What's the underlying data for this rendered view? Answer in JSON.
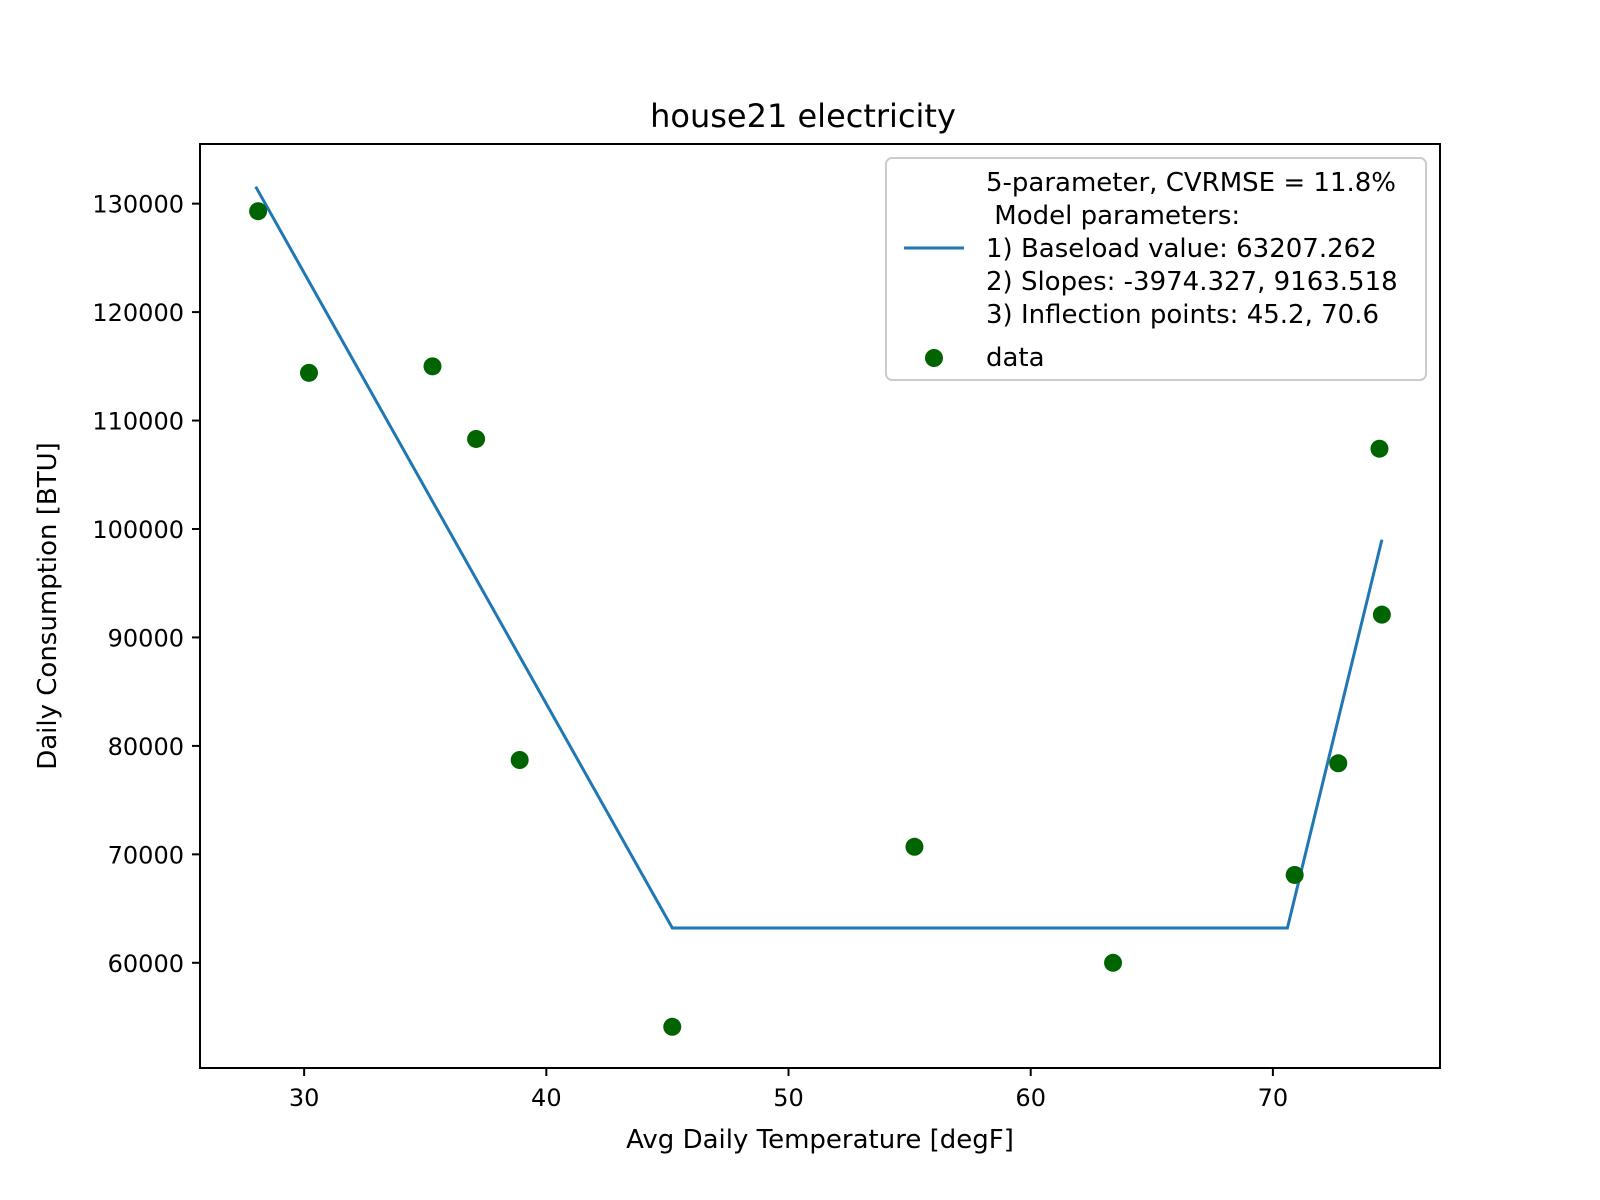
{
  "chart_data": {
    "type": "scatter",
    "title": "house21 electricity",
    "xlabel": "Avg Daily Temperature [degF]",
    "ylabel": "Daily Consumption [BTU]",
    "xlim": [
      25.7,
      76.9
    ],
    "ylim": [
      50300,
      135500
    ],
    "xticks": [
      30,
      40,
      50,
      60,
      70
    ],
    "yticks": [
      60000,
      70000,
      80000,
      90000,
      100000,
      110000,
      120000,
      130000
    ],
    "grid": false,
    "legend_position": "top-right",
    "series": [
      {
        "name": "model",
        "kind": "line",
        "color": "#1f77b4",
        "legend_lines": [
          "5-parameter, CVRMSE = 11.8%",
          " Model parameters:",
          "1) Baseload value: 63207.262",
          "2) Slopes: -3974.327, 9163.518",
          "3) Inflection points: 45.2, 70.6"
        ],
        "x": [
          28.0,
          45.2,
          70.6,
          74.5
        ],
        "y": [
          131564,
          63207,
          63207,
          99016
        ]
      },
      {
        "name": "data",
        "kind": "scatter",
        "color": "#006400",
        "x": [
          28.1,
          30.2,
          35.3,
          37.1,
          38.9,
          45.2,
          55.2,
          63.4,
          70.9,
          72.7,
          74.4,
          74.5
        ],
        "y": [
          129300,
          114400,
          115000,
          108300,
          78700,
          54100,
          70700,
          60000,
          68100,
          78400,
          107400,
          92100
        ]
      }
    ]
  }
}
